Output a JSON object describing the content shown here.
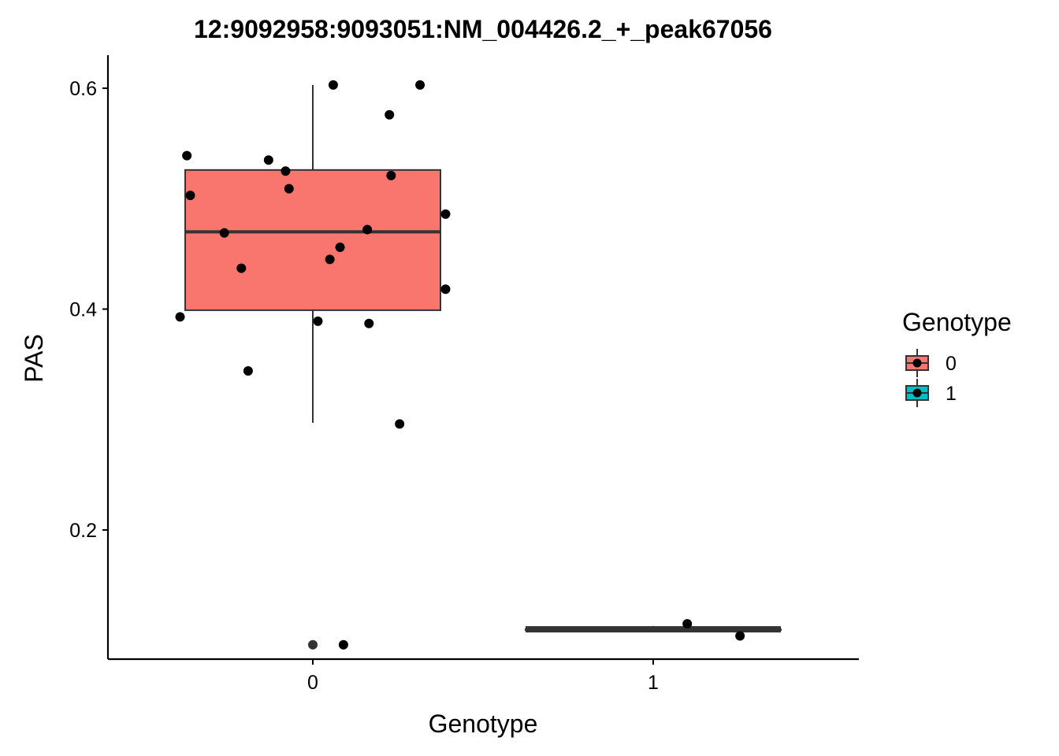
{
  "chart_data": {
    "type": "boxplot",
    "title": "12:9092958:9093051:NM_004426.2_+_peak67056",
    "xlabel": "Genotype",
    "ylabel": "PAS",
    "categories": [
      "0",
      "1"
    ],
    "y_ticks": [
      0.2,
      0.4,
      0.6
    ],
    "y_tick_labels": [
      "0.2",
      "0.4",
      "0.6"
    ],
    "ylim": [
      0.083,
      0.63
    ],
    "grid": false,
    "legend": {
      "title": "Genotype",
      "position": "right",
      "entries": [
        {
          "label": "0",
          "color": "#F8766D"
        },
        {
          "label": "1",
          "color": "#00BFC4"
        }
      ]
    },
    "colors": {
      "genotype_0": "#F8766D",
      "genotype_1": "#00BFC4",
      "box_edge": "#333333",
      "point": "#000000"
    },
    "boxes": [
      {
        "category": "0",
        "q1": 0.399,
        "median": 0.47,
        "q3": 0.526,
        "whisker_low": 0.297,
        "whisker_high": 0.603,
        "outliers": [
          0.096
        ]
      },
      {
        "category": "1",
        "q1": 0.11,
        "median": 0.11,
        "q3": 0.11,
        "whisker_low": 0.11,
        "whisker_high": 0.113,
        "outliers": []
      }
    ],
    "points": [
      {
        "x": -0.37,
        "y": 0.539,
        "g": "0"
      },
      {
        "x": -0.36,
        "y": 0.503,
        "g": "0"
      },
      {
        "x": -0.39,
        "y": 0.393,
        "g": "0"
      },
      {
        "x": -0.26,
        "y": 0.469,
        "g": "0"
      },
      {
        "x": -0.21,
        "y": 0.437,
        "g": "0"
      },
      {
        "x": -0.19,
        "y": 0.344,
        "g": "0"
      },
      {
        "x": -0.13,
        "y": 0.535,
        "g": "0"
      },
      {
        "x": -0.08,
        "y": 0.525,
        "g": "0"
      },
      {
        "x": -0.07,
        "y": 0.509,
        "g": "0"
      },
      {
        "x": 0.015,
        "y": 0.389,
        "g": "0"
      },
      {
        "x": 0.05,
        "y": 0.445,
        "g": "0"
      },
      {
        "x": 0.06,
        "y": 0.603,
        "g": "0"
      },
      {
        "x": 0.08,
        "y": 0.456,
        "g": "0"
      },
      {
        "x": 0.09,
        "y": 0.096,
        "g": "0"
      },
      {
        "x": 0.16,
        "y": 0.472,
        "g": "0"
      },
      {
        "x": 0.165,
        "y": 0.387,
        "g": "0"
      },
      {
        "x": 0.225,
        "y": 0.576,
        "g": "0"
      },
      {
        "x": 0.23,
        "y": 0.521,
        "g": "0"
      },
      {
        "x": 0.255,
        "y": 0.296,
        "g": "0"
      },
      {
        "x": 0.315,
        "y": 0.603,
        "g": "0"
      },
      {
        "x": 0.39,
        "y": 0.486,
        "g": "0"
      },
      {
        "x": 0.39,
        "y": 0.418,
        "g": "0"
      },
      {
        "x": 1.1,
        "y": 0.115,
        "g": "1"
      },
      {
        "x": 1.255,
        "y": 0.104,
        "g": "1"
      }
    ]
  }
}
